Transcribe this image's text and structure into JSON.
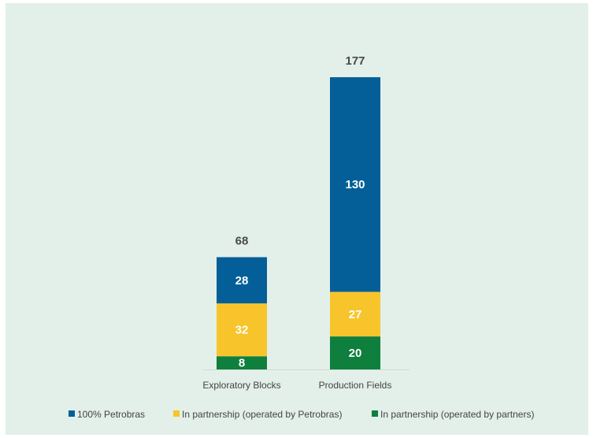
{
  "chart_data": {
    "type": "bar",
    "stacked": true,
    "categories": [
      "Exploratory Blocks",
      "Production Fields"
    ],
    "series": [
      {
        "name": "In partnership (operated by partners)",
        "values": [
          8,
          20
        ],
        "color": "#0f7f3e"
      },
      {
        "name": "In partnership (operated by Petrobras)",
        "values": [
          32,
          27
        ],
        "color": "#f7c52b"
      },
      {
        "name": "100% Petrobras",
        "values": [
          28,
          130
        ],
        "color": "#045f98"
      }
    ],
    "totals": [
      68,
      177
    ],
    "legend": {
      "placement": "bottom",
      "items": [
        {
          "label": "100% Petrobras",
          "color": "#045f98"
        },
        {
          "label": "In partnership (operated by Petrobras)",
          "color": "#f7c52b"
        },
        {
          "label": "In partnership (operated by partners)",
          "color": "#0f7f3e"
        }
      ]
    },
    "title": "",
    "xlabel": "",
    "ylabel": "",
    "ylim": [
      0,
      177
    ],
    "grid": false
  },
  "colors": {
    "background": "#e3efe9",
    "axis": "#cfdcd5"
  }
}
